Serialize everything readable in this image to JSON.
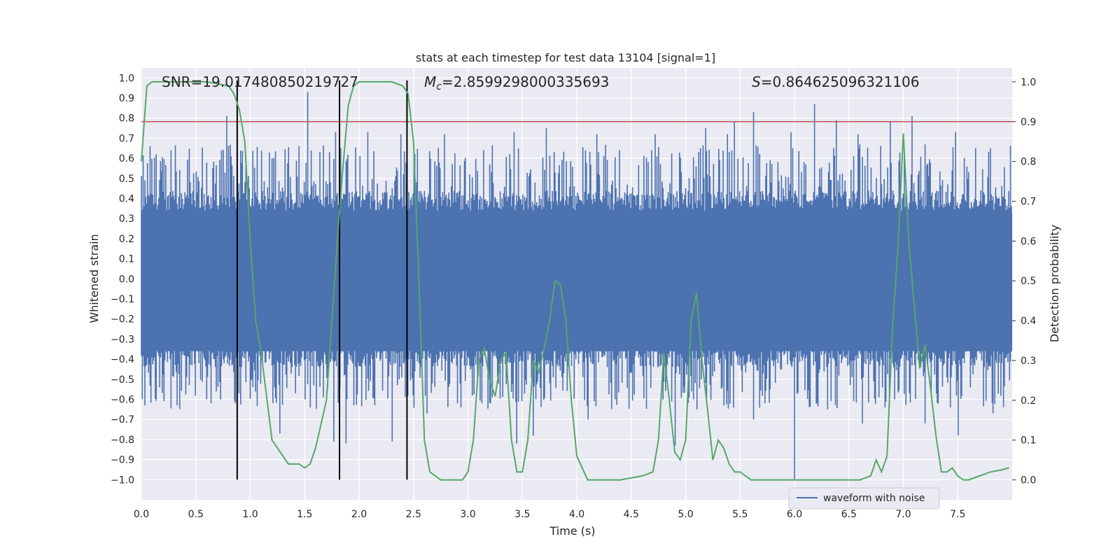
{
  "chart_data": {
    "type": "line",
    "title": "stats at each timestep for test data 13104 [signal=1]",
    "xlabel": "Time (s)",
    "ylabel_left": "Whitened strain",
    "ylabel_right": "Detection probability",
    "xlim": [
      0,
      8
    ],
    "ylim_left": [
      -1.1,
      1.05
    ],
    "ylim_right": [
      -0.05,
      1.035
    ],
    "x_ticks": [
      0.0,
      0.5,
      1.0,
      1.5,
      2.0,
      2.5,
      3.0,
      3.5,
      4.0,
      4.5,
      5.0,
      5.5,
      6.0,
      6.5,
      7.0,
      7.5
    ],
    "x_tick_labels": [
      "0.0",
      "0.5",
      "1.0",
      "1.5",
      "2.0",
      "2.5",
      "3.0",
      "3.5",
      "4.0",
      "4.5",
      "5.0",
      "5.5",
      "6.0",
      "6.5",
      "7.0",
      "7.5"
    ],
    "y_left_ticks": [
      1.0,
      0.9,
      0.8,
      0.7,
      0.6,
      0.5,
      0.4,
      0.3,
      0.2,
      0.1,
      0.0,
      -0.1,
      -0.2,
      -0.3,
      -0.4,
      -0.5,
      -0.6,
      -0.7,
      -0.8,
      -0.9,
      -1.0
    ],
    "y_left_tick_labels": [
      "1.0",
      "0.9",
      "0.8",
      "0.7",
      "0.6",
      "0.5",
      "0.4",
      "0.3",
      "0.2",
      "0.1",
      "0.0",
      "−0.1",
      "−0.2",
      "−0.3",
      "−0.4",
      "−0.5",
      "−0.6",
      "−0.7",
      "−0.8",
      "−0.9",
      "−1.0"
    ],
    "y_right_ticks": [
      1.0,
      0.9,
      0.8,
      0.7,
      0.6,
      0.5,
      0.4,
      0.3,
      0.2,
      0.1,
      0.0
    ],
    "y_right_tick_labels": [
      "1.0",
      "0.9",
      "0.8",
      "0.7",
      "0.6",
      "0.5",
      "0.4",
      "0.3",
      "0.2",
      "0.1",
      "0.0"
    ],
    "grid": true,
    "annotations": {
      "snr": "SNR=19.017480850219727",
      "mc_symbol": "M",
      "mc_sub": "c",
      "mc_value": "=2.8599298000335693",
      "s_symbol": "S",
      "s_value": "=0.864625096321106"
    },
    "legend": {
      "entries": [
        "waveform with noise"
      ],
      "placement": "lower-right"
    },
    "threshold_probability": 0.9,
    "vertical_markers_time": [
      0.88,
      1.82,
      2.44
    ],
    "waveform": {
      "name": "waveform with noise",
      "color": "#4c72b0",
      "core_amplitude": 0.4,
      "peaks_upper": [
        [
          0.08,
          0.66
        ],
        [
          0.27,
          0.64
        ],
        [
          0.78,
          0.81
        ],
        [
          0.88,
          0.65
        ],
        [
          1.2,
          0.6
        ],
        [
          1.53,
          0.93
        ],
        [
          1.78,
          0.73
        ],
        [
          2.08,
          0.73
        ],
        [
          2.38,
          0.72
        ],
        [
          2.78,
          0.72
        ],
        [
          3.42,
          0.73
        ],
        [
          3.72,
          0.75
        ],
        [
          4.18,
          0.72
        ],
        [
          4.72,
          0.72
        ],
        [
          5.18,
          0.75
        ],
        [
          5.38,
          0.72
        ],
        [
          5.45,
          0.78
        ],
        [
          5.62,
          0.83
        ],
        [
          5.97,
          0.73
        ],
        [
          6.18,
          0.87
        ],
        [
          6.38,
          0.79
        ],
        [
          6.58,
          0.72
        ],
        [
          6.88,
          0.78
        ],
        [
          7.08,
          0.81
        ],
        [
          7.48,
          0.73
        ],
        [
          7.8,
          0.65
        ]
      ],
      "peaks_lower": [
        [
          0.03,
          -0.63
        ],
        [
          0.33,
          -0.63
        ],
        [
          0.6,
          -0.6
        ],
        [
          1.27,
          -0.77
        ],
        [
          1.5,
          -0.6
        ],
        [
          1.77,
          -0.81
        ],
        [
          1.88,
          -0.82
        ],
        [
          2.3,
          -0.81
        ],
        [
          2.62,
          -0.67
        ],
        [
          2.9,
          -0.62
        ],
        [
          3.13,
          -0.62
        ],
        [
          3.45,
          -0.82
        ],
        [
          3.6,
          -0.78
        ],
        [
          4.1,
          -0.7
        ],
        [
          4.35,
          -0.6
        ],
        [
          4.9,
          -0.83
        ],
        [
          5.1,
          -0.65
        ],
        [
          5.62,
          -0.7
        ],
        [
          6.0,
          -1.0
        ],
        [
          6.3,
          -0.65
        ],
        [
          6.62,
          -0.72
        ],
        [
          6.92,
          -0.6
        ],
        [
          7.2,
          -0.72
        ],
        [
          7.5,
          -0.78
        ],
        [
          7.82,
          -0.67
        ]
      ]
    },
    "detection_probability": {
      "color": "#55a868",
      "x": [
        0.0,
        0.05,
        0.1,
        0.2,
        0.4,
        0.6,
        0.8,
        0.85,
        0.9,
        0.95,
        1.0,
        1.05,
        1.1,
        1.2,
        1.35,
        1.45,
        1.5,
        1.55,
        1.6,
        1.7,
        1.8,
        1.85,
        1.9,
        1.95,
        2.0,
        2.1,
        2.3,
        2.4,
        2.45,
        2.5,
        2.55,
        2.6,
        2.65,
        2.75,
        2.9,
        2.95,
        3.0,
        3.05,
        3.1,
        3.15,
        3.2,
        3.25,
        3.3,
        3.35,
        3.4,
        3.45,
        3.5,
        3.55,
        3.6,
        3.65,
        3.7,
        3.75,
        3.8,
        3.85,
        3.9,
        3.95,
        4.0,
        4.1,
        4.2,
        4.4,
        4.6,
        4.7,
        4.75,
        4.8,
        4.85,
        4.9,
        4.95,
        5.0,
        5.05,
        5.1,
        5.15,
        5.2,
        5.25,
        5.3,
        5.35,
        5.4,
        5.45,
        5.5,
        5.55,
        5.6,
        5.7,
        5.8,
        5.9,
        6.0,
        6.1,
        6.2,
        6.3,
        6.4,
        6.5,
        6.6,
        6.7,
        6.75,
        6.8,
        6.85,
        6.9,
        6.95,
        7.0,
        7.05,
        7.1,
        7.15,
        7.2,
        7.25,
        7.3,
        7.35,
        7.4,
        7.45,
        7.5,
        7.55,
        7.6,
        7.7,
        7.8,
        7.9,
        7.97
      ],
      "y": [
        0.8,
        0.99,
        1.0,
        1.0,
        1.0,
        1.0,
        0.99,
        0.97,
        0.93,
        0.85,
        0.6,
        0.4,
        0.32,
        0.1,
        0.04,
        0.04,
        0.03,
        0.04,
        0.08,
        0.2,
        0.6,
        0.78,
        0.94,
        0.99,
        1.0,
        1.0,
        1.0,
        0.99,
        0.97,
        0.85,
        0.5,
        0.1,
        0.02,
        0.0,
        0.0,
        0.0,
        0.02,
        0.1,
        0.3,
        0.33,
        0.25,
        0.21,
        0.3,
        0.32,
        0.1,
        0.02,
        0.02,
        0.1,
        0.3,
        0.27,
        0.33,
        0.4,
        0.5,
        0.49,
        0.4,
        0.2,
        0.06,
        0.0,
        0.0,
        0.0,
        0.01,
        0.02,
        0.1,
        0.32,
        0.2,
        0.07,
        0.05,
        0.1,
        0.4,
        0.47,
        0.3,
        0.18,
        0.05,
        0.1,
        0.08,
        0.04,
        0.02,
        0.02,
        0.01,
        0.0,
        0.0,
        0.0,
        0.0,
        0.0,
        0.0,
        0.0,
        0.0,
        0.0,
        0.0,
        0.0,
        0.01,
        0.05,
        0.02,
        0.06,
        0.38,
        0.58,
        0.87,
        0.6,
        0.44,
        0.28,
        0.34,
        0.23,
        0.11,
        0.02,
        0.02,
        0.03,
        0.01,
        0.0,
        0.0,
        0.01,
        0.02,
        0.025,
        0.03
      ]
    }
  }
}
